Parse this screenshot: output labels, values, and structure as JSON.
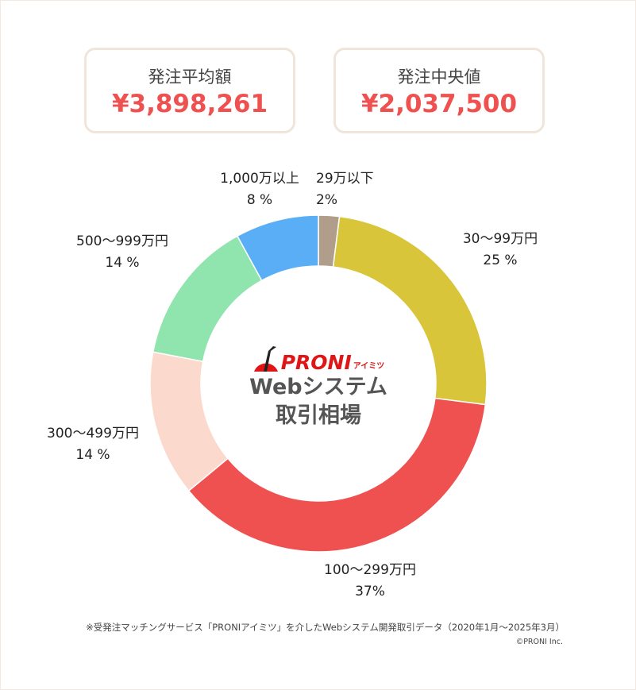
{
  "stats": [
    {
      "label": "発注平均額",
      "value": "¥3,898,261"
    },
    {
      "label": "発注中央値",
      "value": "¥2,037,500"
    }
  ],
  "center": {
    "logo_text": "PRONI",
    "logo_sub": "アイミツ",
    "title_line1": "Webシステム",
    "title_line2": "取引相場"
  },
  "chart_data": {
    "type": "pie",
    "donut": true,
    "title": "Webシステム 取引相場",
    "start": "top-clockwise",
    "slices": [
      {
        "label": "29万以下",
        "value": 2,
        "value_text": "2%",
        "color": "#b09e8a"
      },
      {
        "label": "30〜99万円",
        "value": 25,
        "value_text": "25 %",
        "color": "#d9c53a"
      },
      {
        "label": "100〜299万円",
        "value": 37,
        "value_text": "37%",
        "color": "#ef5150"
      },
      {
        "label": "300〜499万円",
        "value": 14,
        "value_text": "14 %",
        "color": "#fbd9cc"
      },
      {
        "label": "500〜999万円",
        "value": 14,
        "value_text": "14 %",
        "color": "#90e4ae"
      },
      {
        "label": "1,000万以上",
        "value": 8,
        "value_text": "8 %",
        "color": "#5aaef5"
      }
    ]
  },
  "footer": {
    "note": "※受発注マッチングサービス「PRONIアイミツ」を介したWebシステム開発取引データ（2020年1月〜2025年3月）",
    "copyright": "©PRONI Inc."
  }
}
